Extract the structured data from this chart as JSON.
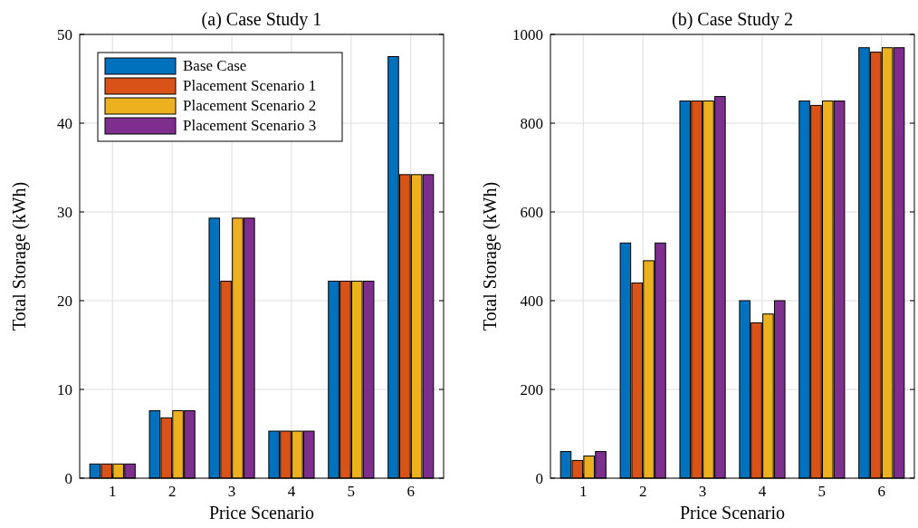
{
  "chart_data": [
    {
      "type": "bar",
      "title": "(a) Case Study 1",
      "xlabel": "Price Scenario",
      "ylabel": "Total Storage (kWh)",
      "categories": [
        "1",
        "2",
        "3",
        "4",
        "5",
        "6"
      ],
      "ylim": [
        0,
        50
      ],
      "yticks": [
        0,
        10,
        20,
        30,
        40,
        50
      ],
      "grid": true,
      "legend": "top left",
      "series": [
        {
          "name": "Base Case",
          "color": "#0072bd",
          "values": [
            1.6,
            7.6,
            29.3,
            5.3,
            22.2,
            47.5
          ]
        },
        {
          "name": "Placement Scenario 1",
          "color": "#d95319",
          "values": [
            1.6,
            6.8,
            22.2,
            5.3,
            22.2,
            34.2
          ]
        },
        {
          "name": "Placement Scenario 2",
          "color": "#edb120",
          "values": [
            1.6,
            7.6,
            29.3,
            5.3,
            22.2,
            34.2
          ]
        },
        {
          "name": "Placement Scenario 3",
          "color": "#7e2f8e",
          "values": [
            1.6,
            7.6,
            29.3,
            5.3,
            22.2,
            34.2
          ]
        }
      ]
    },
    {
      "type": "bar",
      "title": "(b) Case Study 2",
      "xlabel": "Price Scenario",
      "ylabel": "Total Storage (kWh)",
      "categories": [
        "1",
        "2",
        "3",
        "4",
        "5",
        "6"
      ],
      "ylim": [
        0,
        1000
      ],
      "yticks": [
        0,
        200,
        400,
        600,
        800,
        1000
      ],
      "grid": true,
      "series": [
        {
          "color": "#0072bd",
          "values": [
            60,
            530,
            850,
            400,
            850,
            970
          ]
        },
        {
          "color": "#d95319",
          "values": [
            40,
            440,
            850,
            350,
            840,
            960
          ]
        },
        {
          "color": "#edb120",
          "values": [
            50,
            490,
            850,
            370,
            850,
            970
          ]
        },
        {
          "color": "#7e2f8e",
          "values": [
            60,
            530,
            860,
            400,
            850,
            970
          ]
        }
      ]
    }
  ]
}
